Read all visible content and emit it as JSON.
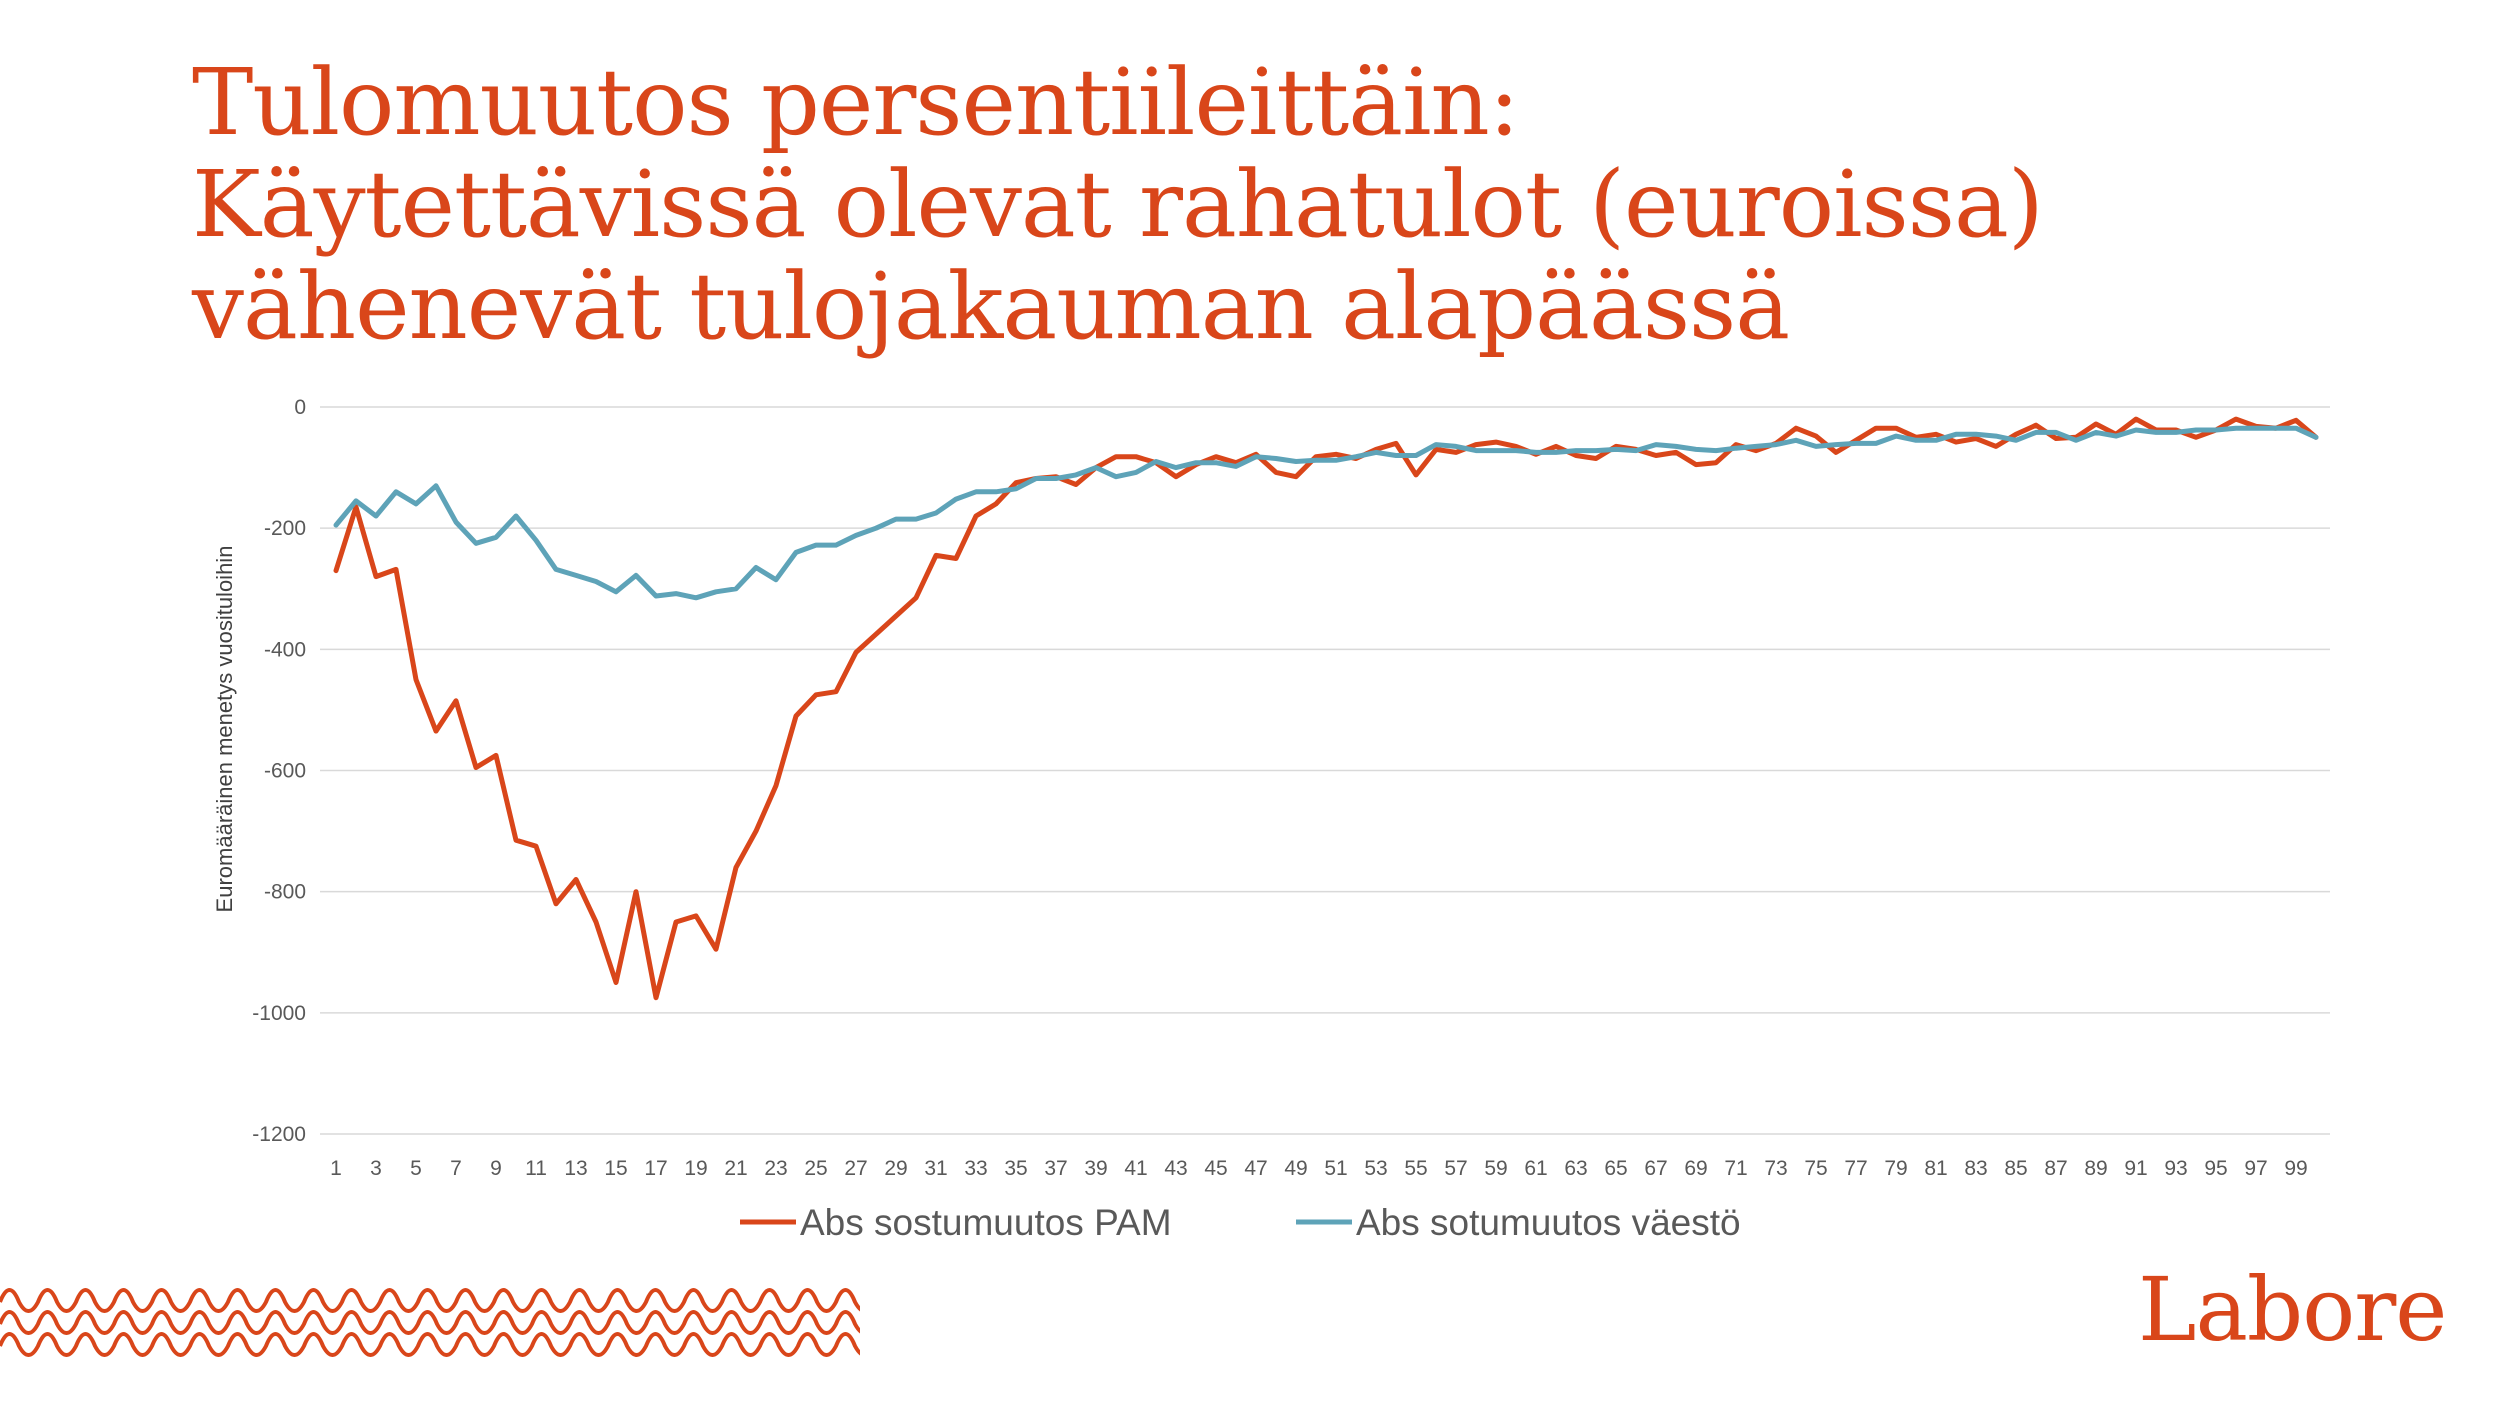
{
  "slide": {
    "title_lines": [
      "Tulomuutos persentiileittäin:",
      "Käytettävissä olevat rahatulot (euroissa)",
      "vähenevät tulojakauman alapäässä"
    ],
    "logo_text": "Labore",
    "accent_color": "#d9461a"
  },
  "chart_data": {
    "type": "line",
    "title": "",
    "xlabel": "",
    "ylabel": "Euromääräinen menetys vuosituloihin",
    "ylim": [
      -1200,
      0
    ],
    "yticks": [
      0,
      -200,
      -400,
      -600,
      -800,
      -1000,
      -1200
    ],
    "ytick_labels": [
      "0",
      "-200",
      "-400",
      "-600",
      "-800",
      "-1000",
      "-1200"
    ],
    "x": [
      1,
      2,
      3,
      4,
      5,
      6,
      7,
      8,
      9,
      10,
      11,
      12,
      13,
      14,
      15,
      16,
      17,
      18,
      19,
      20,
      21,
      22,
      23,
      24,
      25,
      26,
      27,
      28,
      29,
      30,
      31,
      32,
      33,
      34,
      35,
      36,
      37,
      38,
      39,
      40,
      41,
      42,
      43,
      44,
      45,
      46,
      47,
      48,
      49,
      50,
      51,
      52,
      53,
      54,
      55,
      56,
      57,
      58,
      59,
      60,
      61,
      62,
      63,
      64,
      65,
      66,
      67,
      68,
      69,
      70,
      71,
      72,
      73,
      74,
      75,
      76,
      77,
      78,
      79,
      80,
      81,
      82,
      83,
      84,
      85,
      86,
      87,
      88,
      89,
      90,
      91,
      92,
      93,
      94,
      95,
      96,
      97,
      98,
      99,
      100
    ],
    "x_tick_labels": [
      "1",
      "3",
      "5",
      "7",
      "9",
      "11",
      "13",
      "15",
      "17",
      "19",
      "21",
      "23",
      "25",
      "27",
      "29",
      "31",
      "33",
      "35",
      "37",
      "39",
      "41",
      "43",
      "45",
      "47",
      "49",
      "51",
      "53",
      "55",
      "57",
      "59",
      "61",
      "63",
      "65",
      "67",
      "69",
      "71",
      "73",
      "75",
      "77",
      "79",
      "81",
      "83",
      "85",
      "87",
      "89",
      "91",
      "93",
      "95",
      "97",
      "99"
    ],
    "grid": true,
    "legend_position": "bottom",
    "series": [
      {
        "name": "Abs sostumuutos PAM",
        "color": "#d9461a",
        "values": [
          -270,
          -165,
          -280,
          -268,
          -450,
          -535,
          -485,
          -595,
          -575,
          -715,
          -725,
          -820,
          -780,
          -850,
          -950,
          -800,
          -975,
          -850,
          -840,
          -895,
          -760,
          -700,
          -625,
          -510,
          -475,
          -470,
          -405,
          -375,
          -345,
          -315,
          -245,
          -250,
          -180,
          -160,
          -125,
          -118,
          -115,
          -128,
          -100,
          -82,
          -82,
          -92,
          -115,
          -95,
          -82,
          -92,
          -78,
          -108,
          -115,
          -82,
          -78,
          -85,
          -70,
          -60,
          -112,
          -70,
          -75,
          -62,
          -58,
          -65,
          -78,
          -65,
          -80,
          -85,
          -65,
          -70,
          -80,
          -75,
          -95,
          -92,
          -62,
          -72,
          -60,
          -35,
          -48,
          -75,
          -55,
          -35,
          -35,
          -50,
          -45,
          -58,
          -52,
          -65,
          -45,
          -30,
          -52,
          -50,
          -28,
          -45,
          -20,
          -38,
          -38,
          -50,
          -38,
          -20,
          -32,
          -35,
          -22,
          -50
        ]
      },
      {
        "name": "Abs sotumuutos väestö",
        "color": "#5ea3b8",
        "values": [
          -195,
          -155,
          -180,
          -140,
          -160,
          -130,
          -190,
          -225,
          -215,
          -180,
          -220,
          -268,
          -278,
          -288,
          -305,
          -278,
          -312,
          -308,
          -315,
          -305,
          -300,
          -265,
          -285,
          -240,
          -228,
          -228,
          -212,
          -200,
          -185,
          -185,
          -175,
          -152,
          -140,
          -140,
          -135,
          -118,
          -118,
          -112,
          -100,
          -115,
          -108,
          -90,
          -100,
          -92,
          -92,
          -98,
          -82,
          -85,
          -90,
          -88,
          -88,
          -82,
          -75,
          -80,
          -80,
          -62,
          -65,
          -72,
          -72,
          -72,
          -75,
          -75,
          -72,
          -72,
          -70,
          -72,
          -62,
          -65,
          -70,
          -72,
          -68,
          -65,
          -62,
          -55,
          -65,
          -62,
          -60,
          -60,
          -48,
          -55,
          -55,
          -45,
          -45,
          -48,
          -55,
          -42,
          -42,
          -55,
          -42,
          -48,
          -38,
          -42,
          -42,
          -38,
          -38,
          -35,
          -35,
          -35,
          -35,
          -50
        ]
      }
    ]
  }
}
